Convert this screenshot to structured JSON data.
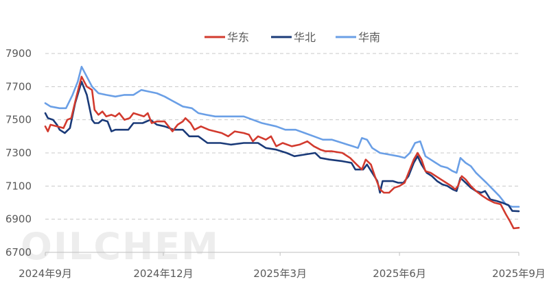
{
  "chart_data": {
    "type": "line",
    "title": "",
    "xlabel": "",
    "ylabel": "",
    "ylim": [
      6700,
      7900
    ],
    "yticks": [
      6700,
      6900,
      7100,
      7300,
      7500,
      7700,
      7900
    ],
    "xlim": [
      "2024-09-01",
      "2025-09-01"
    ],
    "xticks": [
      {
        "date": "2024-09-01",
        "label": "2024年9月"
      },
      {
        "date": "2024-12-01",
        "label": "2024年12月"
      },
      {
        "date": "2025-03-01",
        "label": "2025年3月"
      },
      {
        "date": "2025-06-01",
        "label": "2025年6月"
      },
      {
        "date": "2025-09-01",
        "label": "2025年9月"
      }
    ],
    "grid": "horizontal-dashed",
    "legend_position": "top",
    "watermark": "OILCHEM",
    "series": [
      {
        "name": "华东",
        "color": "#d23a2e",
        "points": [
          [
            "2024-09-01",
            7460
          ],
          [
            "2024-09-03",
            7430
          ],
          [
            "2024-09-05",
            7470
          ],
          [
            "2024-09-10",
            7460
          ],
          [
            "2024-09-15",
            7450
          ],
          [
            "2024-09-18",
            7500
          ],
          [
            "2024-09-21",
            7510
          ],
          [
            "2024-09-25",
            7640
          ],
          [
            "2024-09-29",
            7760
          ],
          [
            "2024-10-03",
            7700
          ],
          [
            "2024-10-07",
            7680
          ],
          [
            "2024-10-09",
            7560
          ],
          [
            "2024-10-12",
            7530
          ],
          [
            "2024-10-15",
            7550
          ],
          [
            "2024-10-18",
            7520
          ],
          [
            "2024-10-22",
            7530
          ],
          [
            "2024-10-25",
            7520
          ],
          [
            "2024-10-28",
            7540
          ],
          [
            "2024-11-01",
            7500
          ],
          [
            "2024-11-05",
            7510
          ],
          [
            "2024-11-08",
            7540
          ],
          [
            "2024-11-12",
            7530
          ],
          [
            "2024-11-16",
            7520
          ],
          [
            "2024-11-19",
            7540
          ],
          [
            "2024-11-22",
            7480
          ],
          [
            "2024-11-26",
            7490
          ],
          [
            "2024-12-02",
            7490
          ],
          [
            "2024-12-05",
            7460
          ],
          [
            "2024-12-08",
            7430
          ],
          [
            "2024-12-12",
            7470
          ],
          [
            "2024-12-16",
            7490
          ],
          [
            "2024-12-18",
            7510
          ],
          [
            "2024-12-22",
            7480
          ],
          [
            "2024-12-25",
            7440
          ],
          [
            "2024-12-30",
            7460
          ],
          [
            "2025-01-05",
            7440
          ],
          [
            "2025-01-10",
            7430
          ],
          [
            "2025-01-15",
            7420
          ],
          [
            "2025-01-20",
            7400
          ],
          [
            "2025-01-25",
            7430
          ],
          [
            "2025-02-01",
            7420
          ],
          [
            "2025-02-05",
            7410
          ],
          [
            "2025-02-08",
            7370
          ],
          [
            "2025-02-12",
            7400
          ],
          [
            "2025-02-18",
            7380
          ],
          [
            "2025-02-22",
            7400
          ],
          [
            "2025-02-26",
            7340
          ],
          [
            "2025-03-03",
            7360
          ],
          [
            "2025-03-10",
            7340
          ],
          [
            "2025-03-16",
            7350
          ],
          [
            "2025-03-22",
            7370
          ],
          [
            "2025-03-27",
            7340
          ],
          [
            "2025-04-01",
            7320
          ],
          [
            "2025-04-05",
            7310
          ],
          [
            "2025-04-10",
            7310
          ],
          [
            "2025-04-18",
            7300
          ],
          [
            "2025-04-24",
            7270
          ],
          [
            "2025-04-29",
            7230
          ],
          [
            "2025-05-03",
            7200
          ],
          [
            "2025-05-06",
            7260
          ],
          [
            "2025-05-10",
            7230
          ],
          [
            "2025-05-13",
            7160
          ],
          [
            "2025-05-17",
            7080
          ],
          [
            "2025-05-20",
            7060
          ],
          [
            "2025-05-24",
            7060
          ],
          [
            "2025-05-28",
            7090
          ],
          [
            "2025-06-01",
            7100
          ],
          [
            "2025-06-05",
            7120
          ],
          [
            "2025-06-08",
            7180
          ],
          [
            "2025-06-12",
            7260
          ],
          [
            "2025-06-15",
            7300
          ],
          [
            "2025-06-18",
            7260
          ],
          [
            "2025-06-21",
            7190
          ],
          [
            "2025-06-25",
            7180
          ],
          [
            "2025-06-29",
            7160
          ],
          [
            "2025-07-03",
            7140
          ],
          [
            "2025-07-07",
            7120
          ],
          [
            "2025-07-11",
            7100
          ],
          [
            "2025-07-14",
            7080
          ],
          [
            "2025-07-16",
            7100
          ],
          [
            "2025-07-19",
            7160
          ],
          [
            "2025-07-22",
            7140
          ],
          [
            "2025-07-26",
            7100
          ],
          [
            "2025-07-30",
            7070
          ],
          [
            "2025-08-04",
            7040
          ],
          [
            "2025-08-08",
            7020
          ],
          [
            "2025-08-13",
            7000
          ],
          [
            "2025-08-18",
            6990
          ],
          [
            "2025-08-22",
            6930
          ],
          [
            "2025-08-25",
            6890
          ],
          [
            "2025-08-28",
            6845
          ],
          [
            "2025-09-01",
            6848
          ]
        ]
      },
      {
        "name": "华北",
        "color": "#1a3a78",
        "points": [
          [
            "2024-09-01",
            7540
          ],
          [
            "2024-09-03",
            7510
          ],
          [
            "2024-09-07",
            7500
          ],
          [
            "2024-09-10",
            7470
          ],
          [
            "2024-09-12",
            7440
          ],
          [
            "2024-09-16",
            7420
          ],
          [
            "2024-09-20",
            7450
          ],
          [
            "2024-09-24",
            7600
          ],
          [
            "2024-09-29",
            7730
          ],
          [
            "2024-10-03",
            7650
          ],
          [
            "2024-10-07",
            7500
          ],
          [
            "2024-10-09",
            7480
          ],
          [
            "2024-10-12",
            7480
          ],
          [
            "2024-10-15",
            7500
          ],
          [
            "2024-10-19",
            7490
          ],
          [
            "2024-10-22",
            7430
          ],
          [
            "2024-10-25",
            7440
          ],
          [
            "2024-10-30",
            7440
          ],
          [
            "2024-11-04",
            7440
          ],
          [
            "2024-11-08",
            7480
          ],
          [
            "2024-11-15",
            7480
          ],
          [
            "2024-11-21",
            7500
          ],
          [
            "2024-11-26",
            7470
          ],
          [
            "2024-12-02",
            7460
          ],
          [
            "2024-12-09",
            7440
          ],
          [
            "2024-12-16",
            7440
          ],
          [
            "2024-12-21",
            7400
          ],
          [
            "2024-12-28",
            7400
          ],
          [
            "2025-01-04",
            7360
          ],
          [
            "2025-01-14",
            7360
          ],
          [
            "2025-01-22",
            7350
          ],
          [
            "2025-02-01",
            7360
          ],
          [
            "2025-02-12",
            7360
          ],
          [
            "2025-02-18",
            7330
          ],
          [
            "2025-02-26",
            7320
          ],
          [
            "2025-03-06",
            7300
          ],
          [
            "2025-03-12",
            7280
          ],
          [
            "2025-03-20",
            7290
          ],
          [
            "2025-03-28",
            7300
          ],
          [
            "2025-04-01",
            7270
          ],
          [
            "2025-04-08",
            7260
          ],
          [
            "2025-04-18",
            7250
          ],
          [
            "2025-04-25",
            7240
          ],
          [
            "2025-04-28",
            7200
          ],
          [
            "2025-05-04",
            7200
          ],
          [
            "2025-05-07",
            7230
          ],
          [
            "2025-05-11",
            7180
          ],
          [
            "2025-05-15",
            7130
          ],
          [
            "2025-05-17",
            7060
          ],
          [
            "2025-05-19",
            7130
          ],
          [
            "2025-05-27",
            7130
          ],
          [
            "2025-05-31",
            7120
          ],
          [
            "2025-06-04",
            7120
          ],
          [
            "2025-06-08",
            7160
          ],
          [
            "2025-06-12",
            7240
          ],
          [
            "2025-06-15",
            7280
          ],
          [
            "2025-06-18",
            7230
          ],
          [
            "2025-06-22",
            7180
          ],
          [
            "2025-06-26",
            7160
          ],
          [
            "2025-06-30",
            7130
          ],
          [
            "2025-07-04",
            7110
          ],
          [
            "2025-07-08",
            7100
          ],
          [
            "2025-07-12",
            7080
          ],
          [
            "2025-07-15",
            7070
          ],
          [
            "2025-07-18",
            7150
          ],
          [
            "2025-07-22",
            7120
          ],
          [
            "2025-07-26",
            7090
          ],
          [
            "2025-07-30",
            7070
          ],
          [
            "2025-08-03",
            7060
          ],
          [
            "2025-08-06",
            7070
          ],
          [
            "2025-08-10",
            7020
          ],
          [
            "2025-08-15",
            7010
          ],
          [
            "2025-08-19",
            7000
          ],
          [
            "2025-08-24",
            6985
          ],
          [
            "2025-08-27",
            6950
          ],
          [
            "2025-09-01",
            6948
          ]
        ]
      },
      {
        "name": "华南",
        "color": "#6a9fe6",
        "points": [
          [
            "2024-09-01",
            7600
          ],
          [
            "2024-09-05",
            7580
          ],
          [
            "2024-09-12",
            7570
          ],
          [
            "2024-09-17",
            7570
          ],
          [
            "2024-09-22",
            7650
          ],
          [
            "2024-09-26",
            7730
          ],
          [
            "2024-09-29",
            7820
          ],
          [
            "2024-10-03",
            7760
          ],
          [
            "2024-10-07",
            7700
          ],
          [
            "2024-10-12",
            7660
          ],
          [
            "2024-10-18",
            7650
          ],
          [
            "2024-10-25",
            7640
          ],
          [
            "2024-11-01",
            7650
          ],
          [
            "2024-11-08",
            7650
          ],
          [
            "2024-11-14",
            7680
          ],
          [
            "2024-11-20",
            7670
          ],
          [
            "2024-11-26",
            7660
          ],
          [
            "2024-12-02",
            7640
          ],
          [
            "2024-12-09",
            7610
          ],
          [
            "2024-12-16",
            7580
          ],
          [
            "2024-12-23",
            7570
          ],
          [
            "2024-12-28",
            7540
          ],
          [
            "2025-01-03",
            7530
          ],
          [
            "2025-01-10",
            7520
          ],
          [
            "2025-01-20",
            7520
          ],
          [
            "2025-02-01",
            7520
          ],
          [
            "2025-02-08",
            7500
          ],
          [
            "2025-02-15",
            7480
          ],
          [
            "2025-02-26",
            7460
          ],
          [
            "2025-03-05",
            7440
          ],
          [
            "2025-03-13",
            7440
          ],
          [
            "2025-03-20",
            7420
          ],
          [
            "2025-03-27",
            7400
          ],
          [
            "2025-04-03",
            7380
          ],
          [
            "2025-04-10",
            7380
          ],
          [
            "2025-04-18",
            7360
          ],
          [
            "2025-04-26",
            7340
          ],
          [
            "2025-04-30",
            7330
          ],
          [
            "2025-05-03",
            7390
          ],
          [
            "2025-05-07",
            7380
          ],
          [
            "2025-05-11",
            7330
          ],
          [
            "2025-05-17",
            7300
          ],
          [
            "2025-05-24",
            7290
          ],
          [
            "2025-05-31",
            7280
          ],
          [
            "2025-06-05",
            7270
          ],
          [
            "2025-06-09",
            7300
          ],
          [
            "2025-06-13",
            7360
          ],
          [
            "2025-06-17",
            7370
          ],
          [
            "2025-06-21",
            7280
          ],
          [
            "2025-06-25",
            7260
          ],
          [
            "2025-06-29",
            7240
          ],
          [
            "2025-07-03",
            7220
          ],
          [
            "2025-07-08",
            7210
          ],
          [
            "2025-07-12",
            7190
          ],
          [
            "2025-07-15",
            7180
          ],
          [
            "2025-07-18",
            7270
          ],
          [
            "2025-07-22",
            7240
          ],
          [
            "2025-07-26",
            7220
          ],
          [
            "2025-07-30",
            7180
          ],
          [
            "2025-08-03",
            7150
          ],
          [
            "2025-08-07",
            7120
          ],
          [
            "2025-08-12",
            7080
          ],
          [
            "2025-08-17",
            7040
          ],
          [
            "2025-08-22",
            6990
          ],
          [
            "2025-08-25",
            6980
          ],
          [
            "2025-08-27",
            6975
          ],
          [
            "2025-09-01",
            6975
          ]
        ]
      }
    ]
  }
}
